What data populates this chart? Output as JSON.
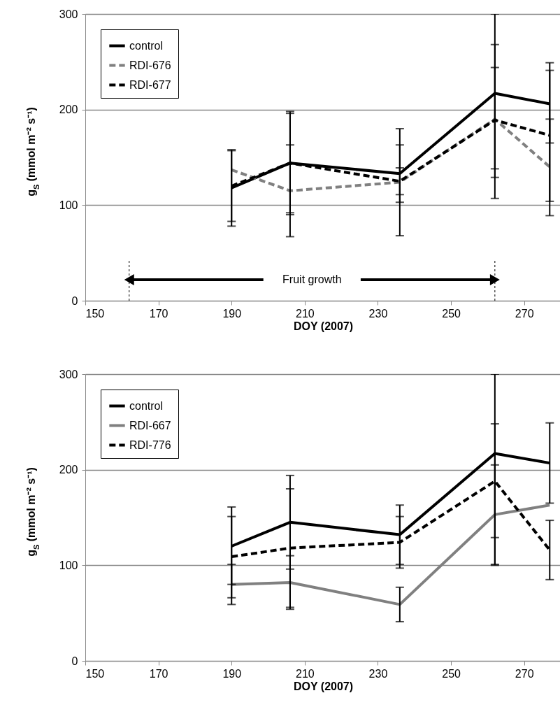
{
  "chart_data": [
    {
      "type": "line",
      "xlabel": "DOY (2007)",
      "ylabel": "g$_{S}$ (mmol m⁻² s⁻¹)",
      "x": [
        190,
        206,
        236,
        262,
        277
      ],
      "series": [
        {
          "name": "control",
          "color": "#000000",
          "line_style": "solid",
          "values": [
            118,
            144,
            133,
            217,
            206
          ],
          "errors": [
            [
              78,
              158
            ],
            [
              92,
              196
            ],
            [
              103,
              163
            ],
            [
              107,
              300
            ],
            [
              165,
              249
            ]
          ]
        },
        {
          "name": "RDI-676",
          "color": "#808080",
          "line_style": "dashed",
          "values": [
            137,
            115,
            124,
            190,
            140
          ],
          "errors": [
            null,
            [
              67,
              163
            ],
            [
              68,
              180
            ],
            [
              129,
              244
            ],
            [
              89,
              190
            ]
          ]
        },
        {
          "name": "RDI-677",
          "color": "#000000",
          "line_style": "dashed",
          "values": [
            120,
            144,
            125,
            189,
            173
          ],
          "errors": [
            [
              83,
              157
            ],
            [
              90,
              198
            ],
            [
              111,
              139
            ],
            [
              138,
              268
            ],
            [
              104,
              241
            ]
          ]
        }
      ],
      "ref_lines": [
        {
          "axis": "x",
          "value": 162,
          "line_style": "dotted"
        },
        {
          "axis": "x",
          "value": 262,
          "line_style": "dotted"
        }
      ],
      "annotations": [
        "Fruit growth"
      ],
      "xlim": [
        150,
        280
      ],
      "xticks": [
        150,
        170,
        190,
        210,
        230,
        250,
        270
      ],
      "ylim": [
        0,
        300
      ],
      "yticks": [
        0,
        100,
        200,
        300
      ],
      "grid": "y",
      "legend": "top left",
      "marker": "none"
    },
    {
      "type": "line",
      "xlabel": "DOY (2007)",
      "ylabel": "g$_{S}$ (mmol m⁻² s⁻¹)",
      "x": [
        190,
        206,
        236,
        262,
        277
      ],
      "series": [
        {
          "name": "control",
          "color": "#000000",
          "line_style": "solid",
          "values": [
            120,
            145,
            132,
            217,
            207
          ],
          "errors": [
            [
              80,
              161
            ],
            [
              96,
              194
            ],
            [
              101,
              163
            ],
            [
              100,
              300
            ],
            [
              165,
              249
            ]
          ]
        },
        {
          "name": "RDI-667",
          "color": "#808080",
          "line_style": "solid",
          "values": [
            80,
            82,
            59,
            153,
            163
          ],
          "errors": [
            [
              59,
              101
            ],
            [
              54,
              110
            ],
            [
              41,
              77
            ],
            [
              101,
              205
            ],
            null
          ]
        },
        {
          "name": "RDI-776",
          "color": "#000000",
          "line_style": "dashed",
          "values": [
            109,
            118,
            124,
            188,
            116
          ],
          "errors": [
            [
              66,
              151
            ],
            [
              56,
              180
            ],
            [
              97,
              151
            ],
            [
              129,
              248
            ],
            [
              85,
              147
            ]
          ]
        }
      ],
      "xlim": [
        150,
        280
      ],
      "xticks": [
        150,
        170,
        190,
        210,
        230,
        250,
        270
      ],
      "ylim": [
        0,
        300
      ],
      "yticks": [
        0,
        100,
        200,
        300
      ],
      "grid": "y",
      "legend": "top left",
      "marker": "none"
    }
  ]
}
